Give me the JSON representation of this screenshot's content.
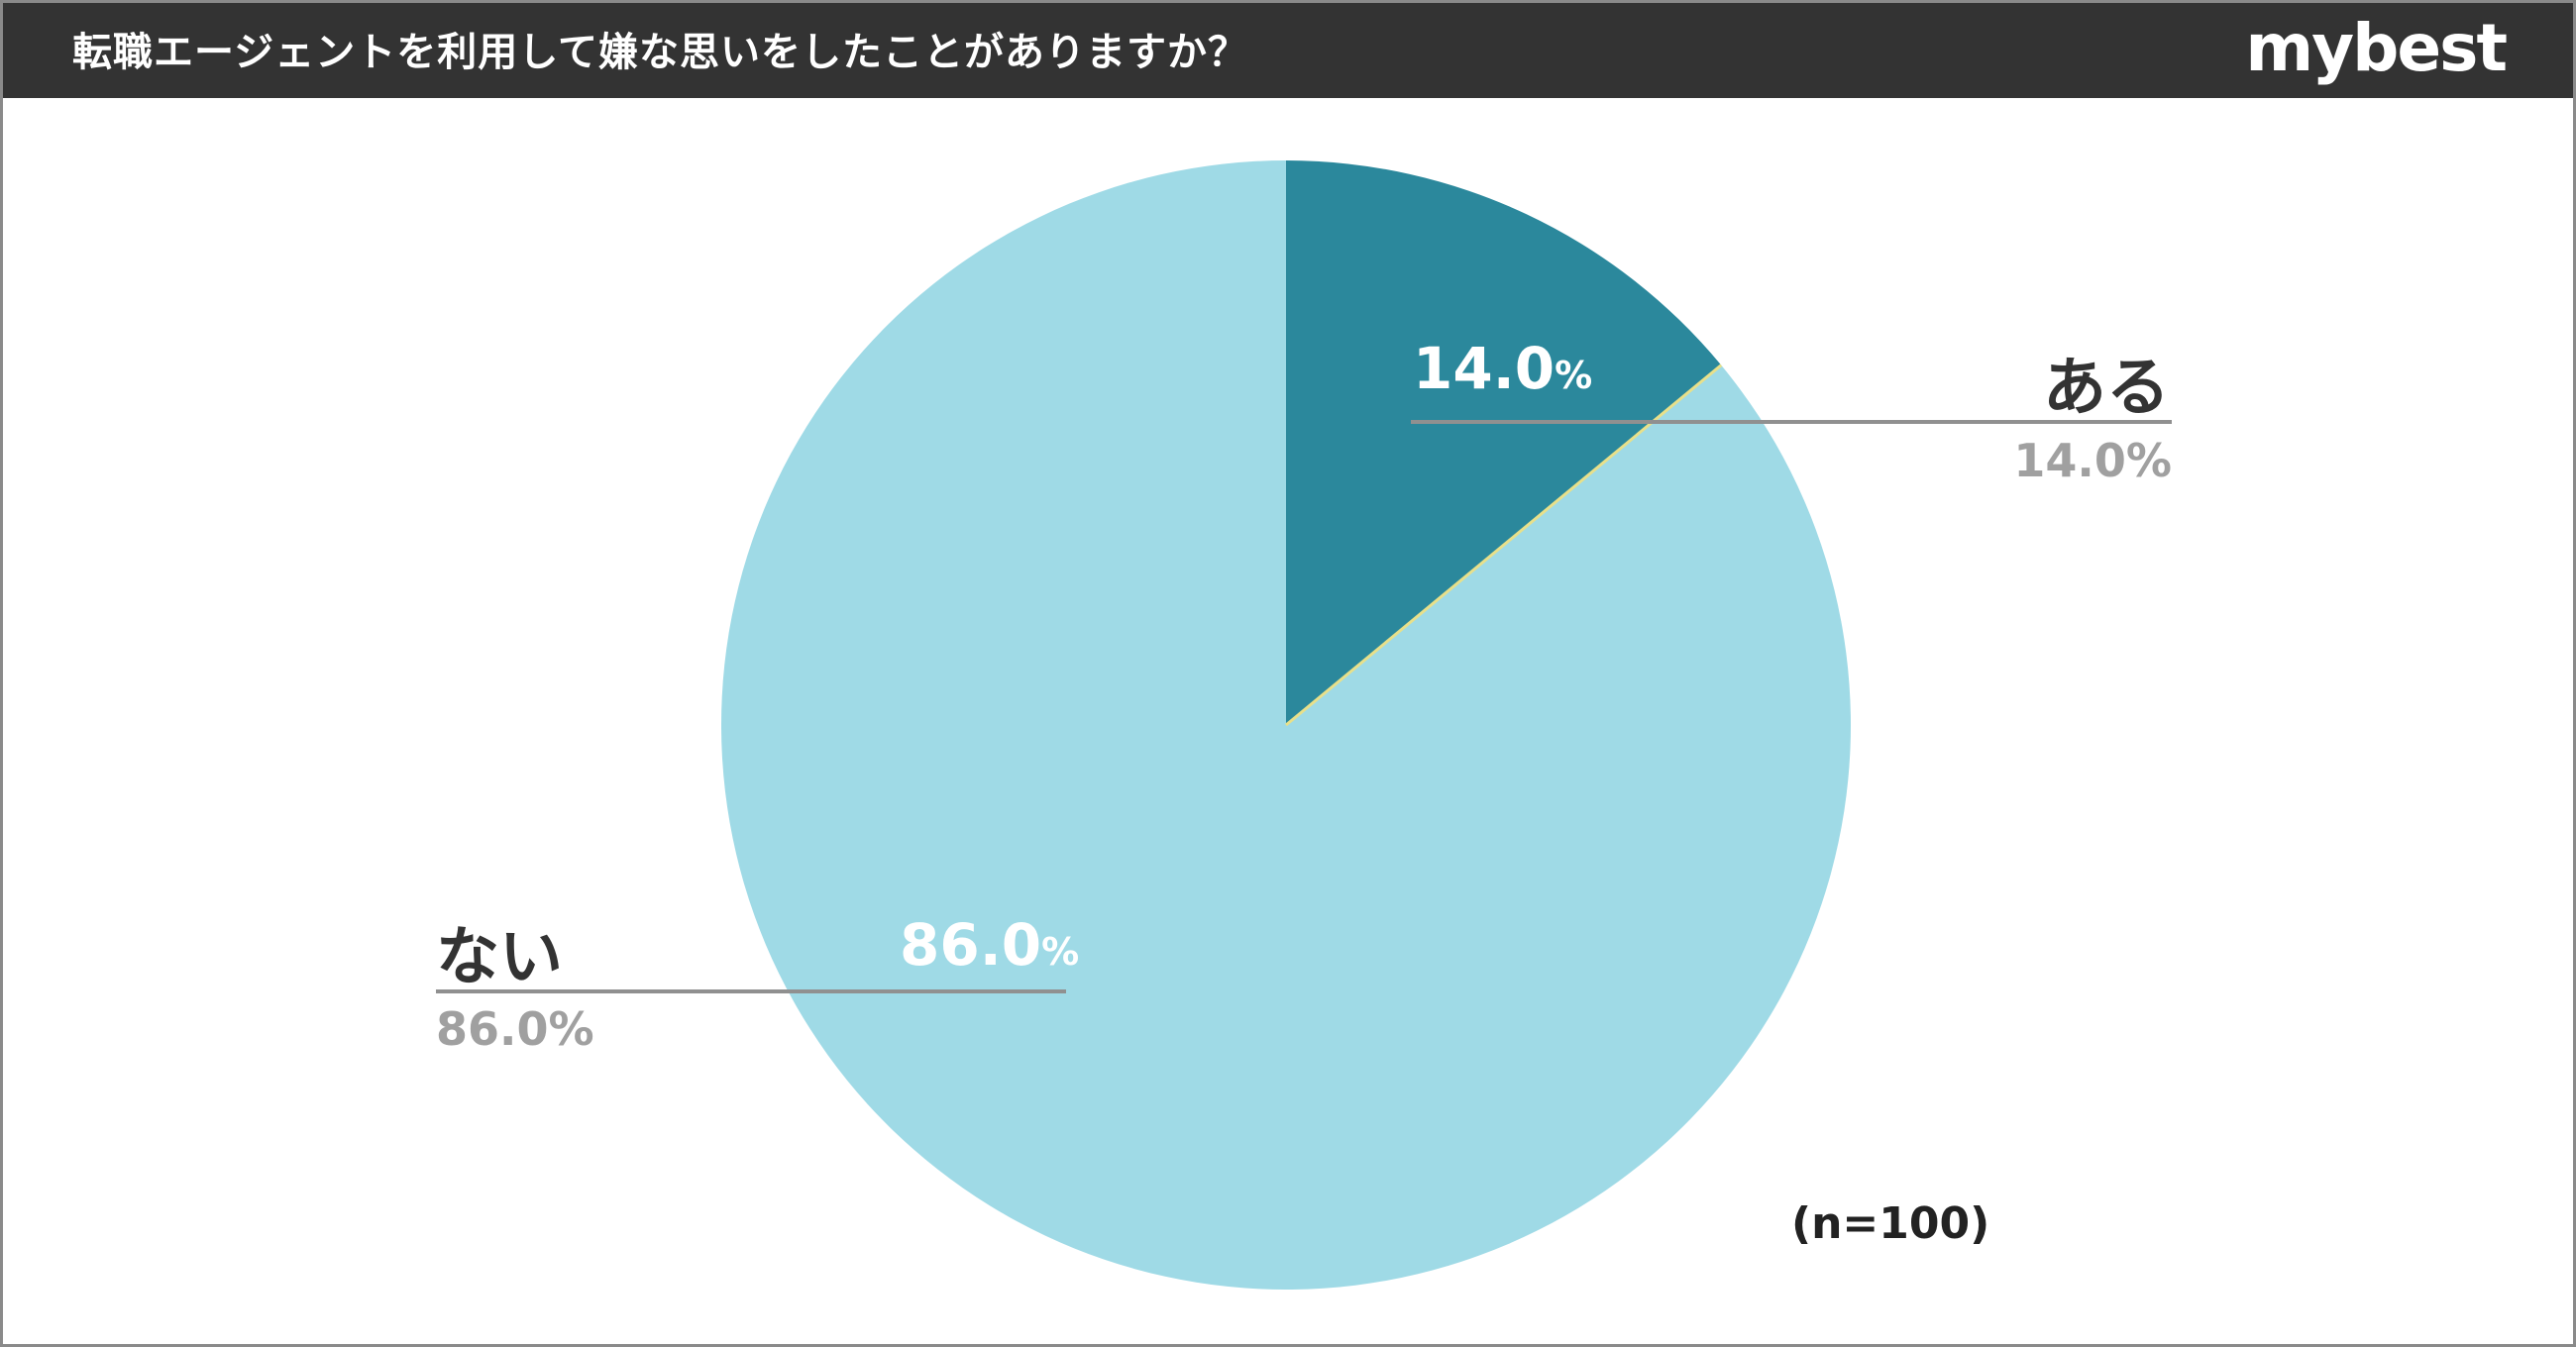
{
  "header": {
    "title": "転職エージェントを利用して嫌な思いをしたことがありますか？",
    "brand": "mybest"
  },
  "note": "(n=100)",
  "colors": {
    "header_bg": "#333333",
    "slice_aru": "#2b889c",
    "slice_nai": "#9fdae6",
    "separator": "#e8e08a",
    "leader_line": "#909090",
    "label_dark": "#333333",
    "label_gray": "#a0a0a0"
  },
  "chart_data": {
    "type": "pie",
    "sample_size": 100,
    "slices": [
      {
        "label": "ある",
        "value": 14.0,
        "display": "14.0%",
        "inside_number": "14.0",
        "inside_unit": "%"
      },
      {
        "label": "ない",
        "value": 86.0,
        "display": "86.0%",
        "inside_number": "86.0",
        "inside_unit": "%"
      }
    ]
  }
}
